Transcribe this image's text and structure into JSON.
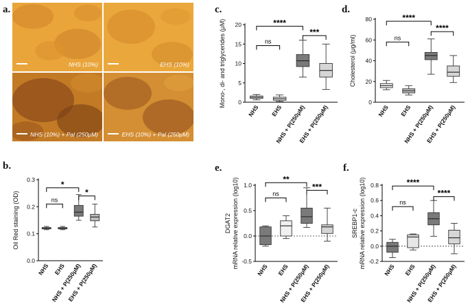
{
  "panels": {
    "a": "a.",
    "b": "b.",
    "c": "c.",
    "d": "d.",
    "e": "e.",
    "f": "f."
  },
  "micrographs": [
    {
      "caption": "NHS (10%)"
    },
    {
      "caption": "EHS (10%)"
    },
    {
      "caption": "NHS (10%) + Pal (250μM)"
    },
    {
      "caption": "EHS (10%) + Pal (250μM)"
    }
  ],
  "chart_data": [
    {
      "id": "b",
      "type": "box",
      "ylabel": "Oil Red staining (OD)",
      "ylim": [
        0,
        0.3
      ],
      "yticks": [
        0,
        0.1,
        0.2,
        0.3
      ],
      "ytick_labels": [
        "0.0",
        "0.1",
        "0.2",
        "0.3"
      ],
      "categories": [
        "NHS",
        "EHS",
        "NHS + P(250μM)",
        "EHS + P(250μM)"
      ],
      "boxes": [
        {
          "min": 0.115,
          "q1": 0.118,
          "median": 0.12,
          "q3": 0.123,
          "max": 0.127,
          "color": "#f0f0f0"
        },
        {
          "min": 0.115,
          "q1": 0.118,
          "median": 0.12,
          "q3": 0.123,
          "max": 0.127,
          "color": "#f0f0f0"
        },
        {
          "min": 0.15,
          "q1": 0.165,
          "median": 0.18,
          "q3": 0.205,
          "max": 0.245,
          "color": "#7a7a7a"
        },
        {
          "min": 0.125,
          "q1": 0.148,
          "median": 0.162,
          "q3": 0.172,
          "max": 0.21,
          "color": "#bdbdbd"
        }
      ],
      "brackets": [
        {
          "from": 0,
          "to": 2,
          "y": 0.27,
          "label": "*"
        },
        {
          "from": 0,
          "to": 1,
          "y": 0.21,
          "label": "ns"
        },
        {
          "from": 2,
          "to": 3,
          "y": 0.24,
          "label": "*"
        }
      ],
      "zero_line": false
    },
    {
      "id": "c",
      "type": "box",
      "ylabel": "Mono-, di- and triglycerides (μM)",
      "ylim": [
        0,
        20
      ],
      "yticks": [
        0,
        5,
        10,
        15,
        20
      ],
      "ytick_labels": [
        "0",
        "5",
        "10",
        "15",
        "20"
      ],
      "categories": [
        "NHS",
        "EHS",
        "NHS + P(250μM)",
        "EHS + P(250μM)"
      ],
      "boxes": [
        {
          "min": 0.6,
          "q1": 1.0,
          "median": 1.3,
          "q3": 1.6,
          "max": 2.0,
          "color": "#f0f0f0"
        },
        {
          "min": 0.2,
          "q1": 0.5,
          "median": 0.9,
          "q3": 1.3,
          "max": 1.9,
          "color": "#f0f0f0"
        },
        {
          "min": 6.5,
          "q1": 9.2,
          "median": 10.7,
          "q3": 12.3,
          "max": 16.0,
          "color": "#7a7a7a"
        },
        {
          "min": 3.3,
          "q1": 6.5,
          "median": 8.2,
          "q3": 10.0,
          "max": 15.0,
          "color": "#d6d6d6"
        }
      ],
      "brackets": [
        {
          "from": 0,
          "to": 2,
          "y": 19.6,
          "label": "****"
        },
        {
          "from": 0,
          "to": 1,
          "y": 14.6,
          "label": "ns"
        },
        {
          "from": 2,
          "to": 3,
          "y": 17.2,
          "label": "***"
        }
      ],
      "zero_line": false
    },
    {
      "id": "d",
      "type": "box",
      "ylabel": "Cholesterol (μg/ml)",
      "ylim": [
        0,
        80
      ],
      "yticks": [
        0,
        20,
        40,
        60,
        80
      ],
      "ytick_labels": [
        "0",
        "20",
        "40",
        "60",
        "80"
      ],
      "categories": [
        "NHS",
        "EHS",
        "NHS + P(250μM)",
        "EHS + P(250μM)"
      ],
      "boxes": [
        {
          "min": 12,
          "q1": 14,
          "median": 16,
          "q3": 18,
          "max": 21,
          "color": "#f0f0f0"
        },
        {
          "min": 7,
          "q1": 9,
          "median": 11,
          "q3": 13,
          "max": 16,
          "color": "#bdbdbd"
        },
        {
          "min": 27,
          "q1": 41,
          "median": 45,
          "q3": 48,
          "max": 61,
          "color": "#7a7a7a"
        },
        {
          "min": 19,
          "q1": 25,
          "median": 29,
          "q3": 35,
          "max": 45,
          "color": "#d6d6d6"
        }
      ],
      "brackets": [
        {
          "from": 0,
          "to": 2,
          "y": 78,
          "label": "****"
        },
        {
          "from": 0,
          "to": 1,
          "y": 58,
          "label": "ns"
        },
        {
          "from": 2,
          "to": 3,
          "y": 68,
          "label": "****"
        }
      ],
      "zero_line": false
    },
    {
      "id": "e",
      "type": "box",
      "ylabel": "DGAT2\nmRNA relative expression (log10)",
      "ylim": [
        -0.5,
        1.0
      ],
      "yticks": [
        -0.5,
        0,
        0.5,
        1.0
      ],
      "ytick_labels": [
        "-0.5",
        "0.0",
        "0.5",
        "1.0"
      ],
      "categories": [
        "NHS",
        "EHS",
        "NHS + P(250μM)",
        "EHS + P(250μM)"
      ],
      "boxes": [
        {
          "min": -0.2,
          "q1": -0.17,
          "median": 0.0,
          "q3": 0.18,
          "max": 0.2,
          "color": "#7a7a7a"
        },
        {
          "min": -0.05,
          "q1": 0.0,
          "median": 0.2,
          "q3": 0.3,
          "max": 0.4,
          "color": "#f0f0f0"
        },
        {
          "min": 0.17,
          "q1": 0.25,
          "median": 0.38,
          "q3": 0.55,
          "max": 0.95,
          "color": "#7a7a7a"
        },
        {
          "min": -0.1,
          "q1": 0.05,
          "median": 0.18,
          "q3": 0.22,
          "max": 0.55,
          "color": "#d6d6d6"
        }
      ],
      "brackets": [
        {
          "from": 0,
          "to": 2,
          "y": 1.05,
          "label": "**"
        },
        {
          "from": 0,
          "to": 1,
          "y": 0.75,
          "label": "ns"
        },
        {
          "from": 2,
          "to": 3,
          "y": 0.9,
          "label": "***"
        }
      ],
      "zero_line": true
    },
    {
      "id": "f",
      "type": "box",
      "ylabel": "SREBP1-c\nmRNA relative expression (log10)",
      "ylim": [
        -0.2,
        0.8
      ],
      "yticks": [
        -0.2,
        0,
        0.2,
        0.4,
        0.6,
        0.8
      ],
      "ytick_labels": [
        "-0.2",
        "0.0",
        "0.2",
        "0.4",
        "0.6",
        "0.8"
      ],
      "categories": [
        "NHS",
        "EHS",
        "NHS + P(250μM)",
        "EHS + P(250μM)"
      ],
      "boxes": [
        {
          "min": -0.15,
          "q1": -0.08,
          "median": 0.0,
          "q3": 0.05,
          "max": 0.09,
          "color": "#7a7a7a"
        },
        {
          "min": -0.05,
          "q1": -0.02,
          "median": 0.12,
          "q3": 0.15,
          "max": 0.16,
          "color": "#e6e6e6"
        },
        {
          "min": 0.13,
          "q1": 0.28,
          "median": 0.36,
          "q3": 0.44,
          "max": 0.6,
          "color": "#7a7a7a"
        },
        {
          "min": -0.1,
          "q1": 0.03,
          "median": 0.11,
          "q3": 0.21,
          "max": 0.3,
          "color": "#d6d6d6"
        }
      ],
      "brackets": [
        {
          "from": 0,
          "to": 2,
          "y": 0.79,
          "label": "****"
        },
        {
          "from": 0,
          "to": 1,
          "y": 0.52,
          "label": "ns"
        },
        {
          "from": 2,
          "to": 3,
          "y": 0.65,
          "label": "****"
        }
      ],
      "zero_line": true
    }
  ]
}
